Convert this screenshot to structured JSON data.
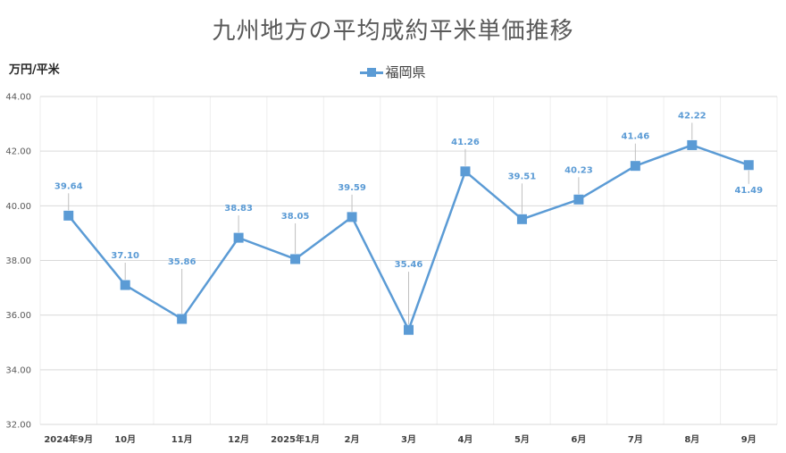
{
  "chart_data": {
    "type": "line",
    "title": "九州地方の平均成約平米単価推移",
    "ylabel": "万円/平米",
    "xlabel": "",
    "categories": [
      "2024年9月",
      "10月",
      "11月",
      "12月",
      "2025年1月",
      "2月",
      "3月",
      "4月",
      "5月",
      "6月",
      "7月",
      "8月",
      "9月"
    ],
    "series": [
      {
        "name": "福岡県",
        "values": [
          39.64,
          37.1,
          35.86,
          38.83,
          38.05,
          39.59,
          35.46,
          41.26,
          39.51,
          40.23,
          41.46,
          42.22,
          41.49
        ],
        "labels": [
          "39.64",
          "37.10",
          "35.86",
          "38.83",
          "38.05",
          "39.59",
          "35.46",
          "41.26",
          "39.51",
          "40.23",
          "41.46",
          "42.22",
          "41.49"
        ]
      }
    ],
    "ylim": [
      32,
      44
    ],
    "yticks": [
      "32.00",
      "34.00",
      "36.00",
      "38.00",
      "40.00",
      "42.00",
      "44.00"
    ],
    "grid": true,
    "legend_position": "top-center",
    "colors": {
      "series": "#5b9bd5",
      "grid": "#d9d9d9",
      "tick_text": "#595959"
    }
  }
}
